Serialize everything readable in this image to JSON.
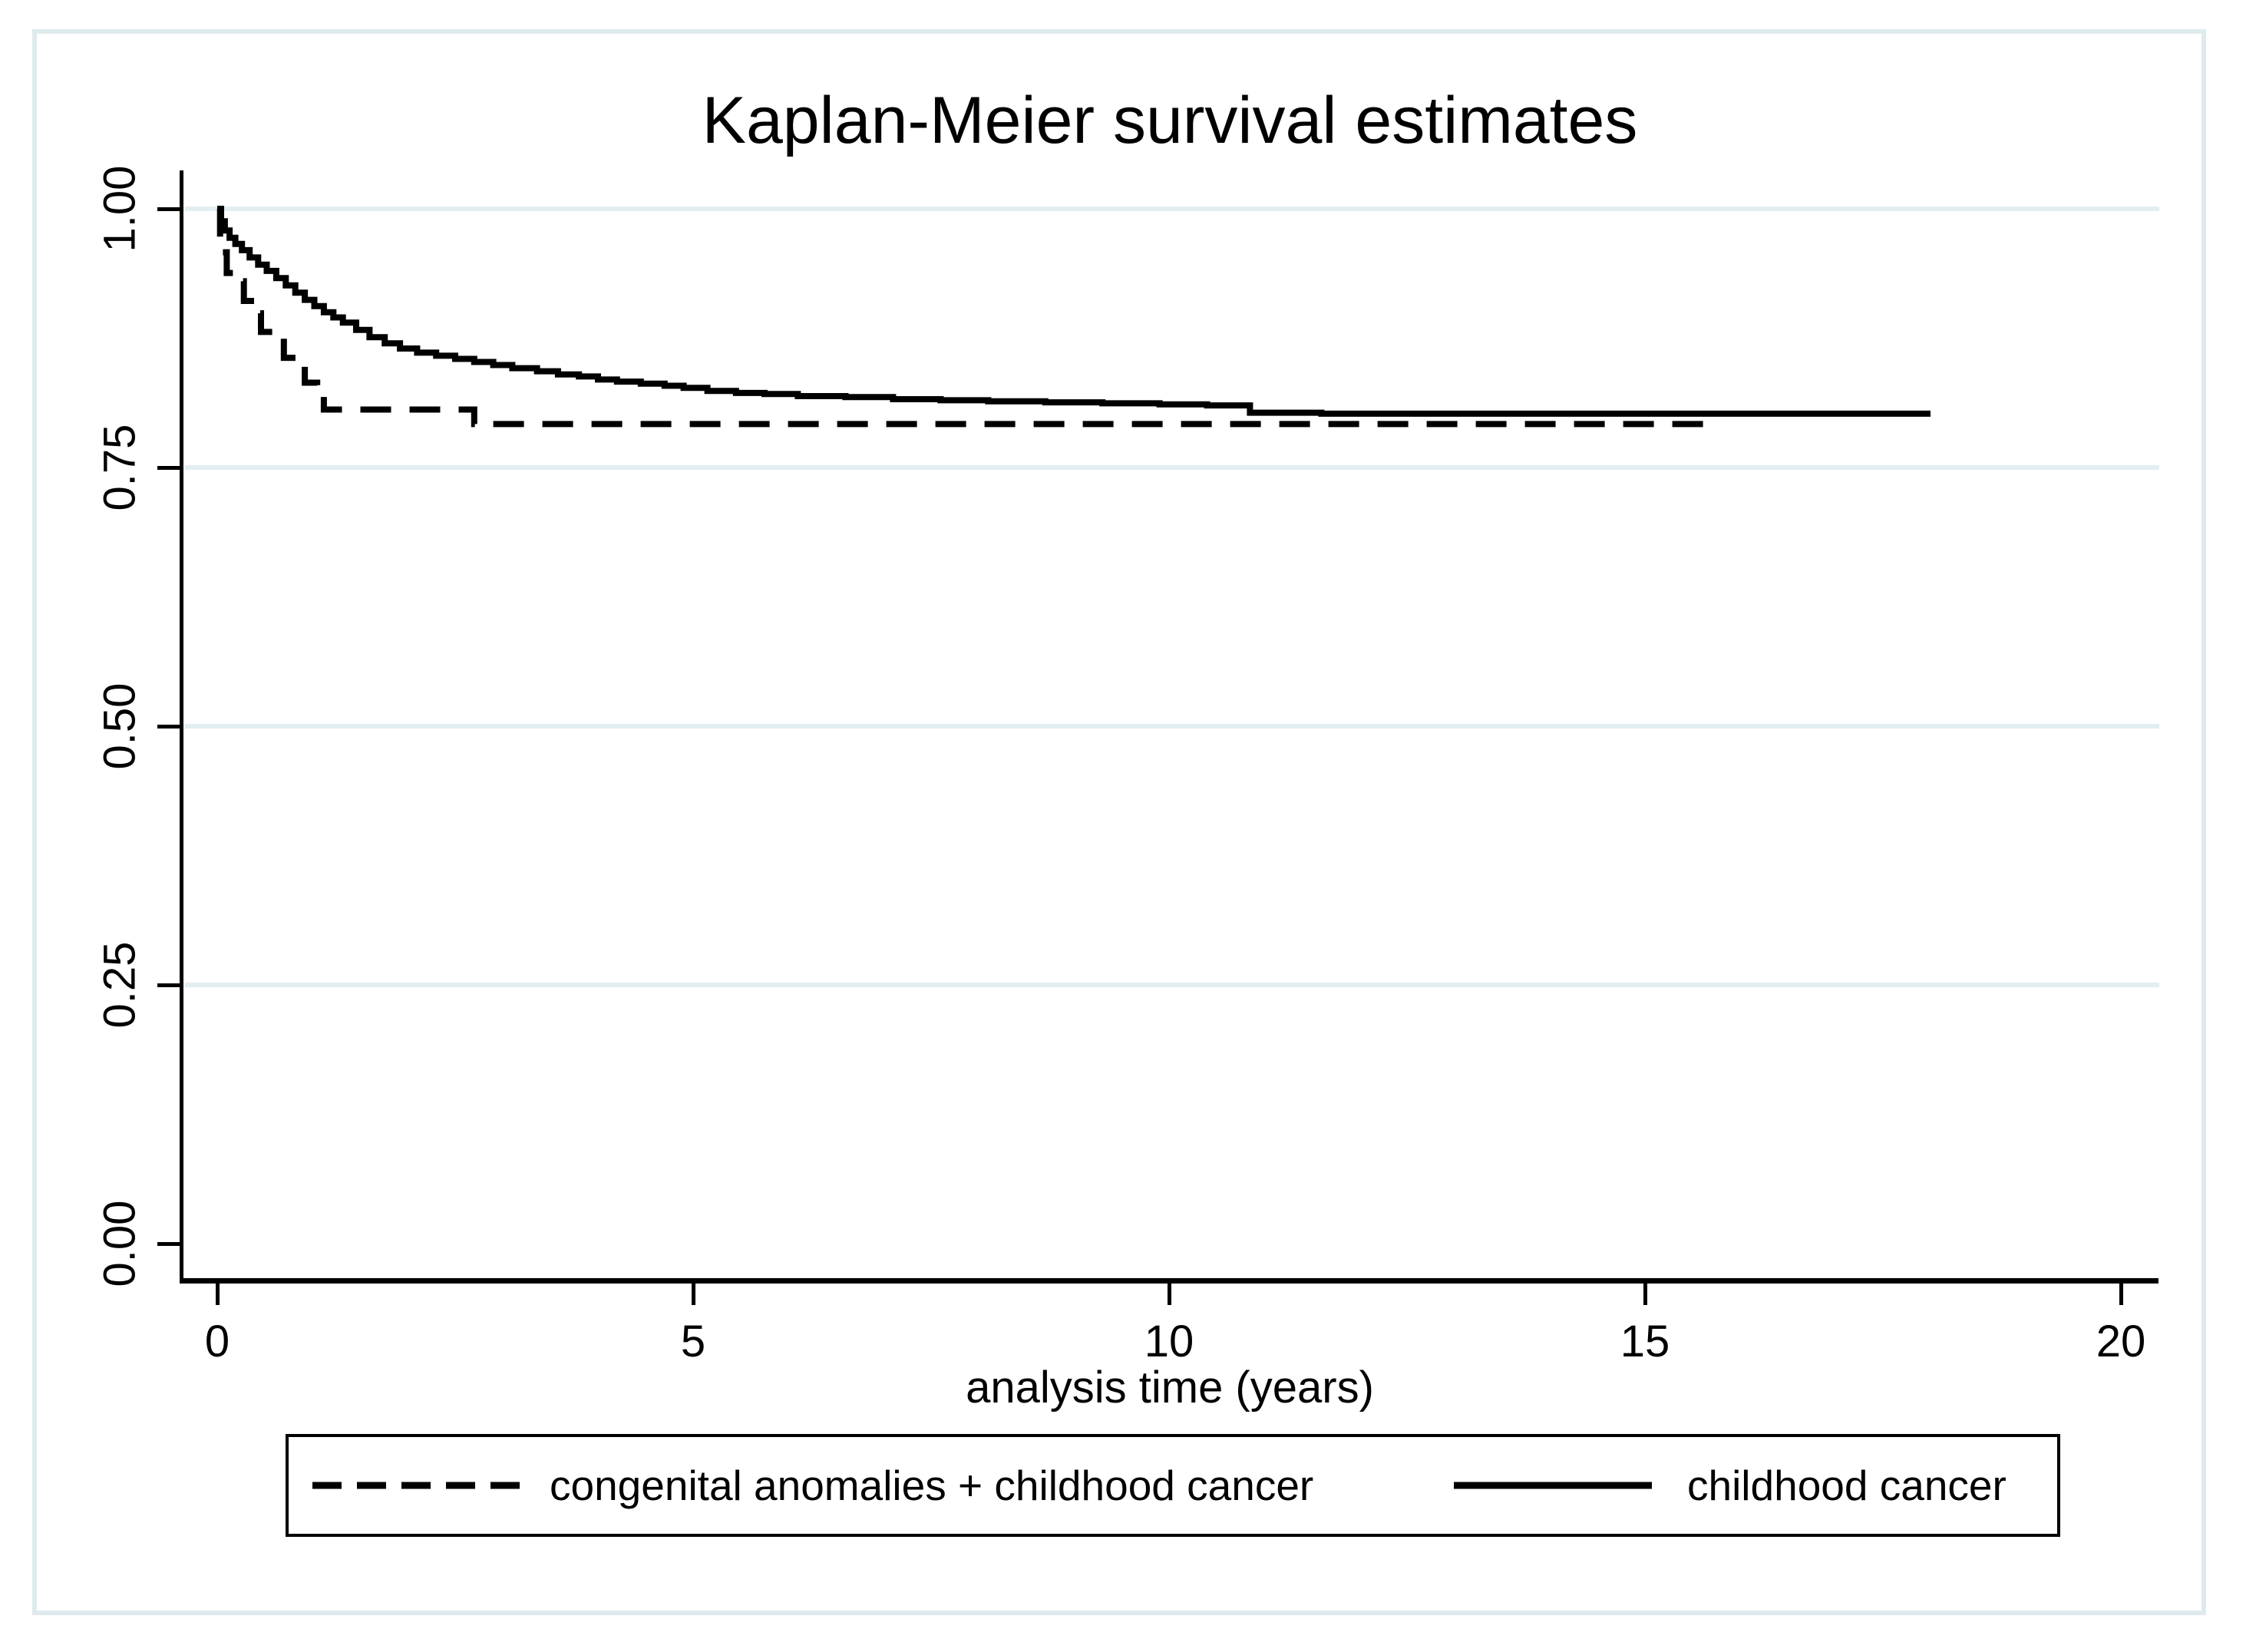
{
  "figure": {
    "title": "Kaplan-Meier survival estimates"
  },
  "colors": {
    "curve": "#000000",
    "gridline": "#e2eef2",
    "frame_border": "#dfeaed",
    "text": "#000000",
    "background": "#ffffff"
  },
  "legend": {
    "position": "bottom",
    "items": [
      {
        "label": "congenital anomalies + childhood cancer",
        "style": "dashed"
      },
      {
        "label": "childhood cancer",
        "style": "solid"
      }
    ]
  },
  "chart_data": {
    "type": "line",
    "subtype": "kaplan-meier-step",
    "title": "Kaplan-Meier survival estimates",
    "xlabel": "analysis time (years)",
    "ylabel": "",
    "xlim": [
      0,
      20
    ],
    "ylim": [
      0.0,
      1.0
    ],
    "grid": "horizontal",
    "legend_position": "bottom",
    "x_ticks": [
      {
        "value": 0,
        "label": "0"
      },
      {
        "value": 5,
        "label": "5"
      },
      {
        "value": 10,
        "label": "10"
      },
      {
        "value": 15,
        "label": "15"
      },
      {
        "value": 20,
        "label": "20"
      }
    ],
    "y_ticks": [
      {
        "value": 1.0,
        "label": "1.00",
        "grid": true
      },
      {
        "value": 0.75,
        "label": "0.75",
        "grid": true
      },
      {
        "value": 0.5,
        "label": "0.50",
        "grid": true
      },
      {
        "value": 0.25,
        "label": "0.25",
        "grid": true
      },
      {
        "value": 0.0,
        "label": "0.00",
        "grid": false
      }
    ],
    "series": [
      {
        "name": "congenital anomalies + childhood cancer",
        "style": "dashed",
        "step": true,
        "end_time_years": 15.8,
        "points": [
          [
            0.0,
            1.0
          ],
          [
            0.03,
            0.958
          ],
          [
            0.1,
            0.938
          ],
          [
            0.22,
            0.93
          ],
          [
            0.28,
            0.911
          ],
          [
            0.4,
            0.899
          ],
          [
            0.46,
            0.881
          ],
          [
            0.65,
            0.876
          ],
          [
            0.7,
            0.856
          ],
          [
            0.86,
            0.852
          ],
          [
            0.92,
            0.832
          ],
          [
            1.05,
            0.824
          ],
          [
            1.12,
            0.806
          ],
          [
            2.7,
            0.792
          ],
          [
            15.8,
            0.792
          ]
        ]
      },
      {
        "name": "childhood cancer",
        "style": "solid",
        "step": true,
        "end_time_years": 18.0,
        "points": [
          [
            0.0,
            1.0
          ],
          [
            0.04,
            0.988
          ],
          [
            0.08,
            0.979
          ],
          [
            0.13,
            0.972
          ],
          [
            0.19,
            0.966
          ],
          [
            0.26,
            0.96
          ],
          [
            0.34,
            0.953
          ],
          [
            0.43,
            0.946
          ],
          [
            0.52,
            0.94
          ],
          [
            0.62,
            0.933
          ],
          [
            0.72,
            0.926
          ],
          [
            0.82,
            0.919
          ],
          [
            0.92,
            0.912
          ],
          [
            1.02,
            0.906
          ],
          [
            1.12,
            0.9
          ],
          [
            1.22,
            0.895
          ],
          [
            1.32,
            0.89
          ],
          [
            1.46,
            0.883
          ],
          [
            1.6,
            0.876
          ],
          [
            1.76,
            0.87
          ],
          [
            1.92,
            0.865
          ],
          [
            2.1,
            0.861
          ],
          [
            2.3,
            0.858
          ],
          [
            2.5,
            0.855
          ],
          [
            2.7,
            0.852
          ],
          [
            2.9,
            0.849
          ],
          [
            3.1,
            0.846
          ],
          [
            3.36,
            0.843
          ],
          [
            3.58,
            0.84
          ],
          [
            3.8,
            0.838
          ],
          [
            4.0,
            0.835
          ],
          [
            4.2,
            0.833
          ],
          [
            4.45,
            0.831
          ],
          [
            4.7,
            0.829
          ],
          [
            4.9,
            0.827
          ],
          [
            5.15,
            0.824
          ],
          [
            5.45,
            0.822
          ],
          [
            5.75,
            0.821
          ],
          [
            6.1,
            0.819
          ],
          [
            6.6,
            0.818
          ],
          [
            7.1,
            0.816
          ],
          [
            7.6,
            0.815
          ],
          [
            8.1,
            0.814
          ],
          [
            8.7,
            0.813
          ],
          [
            9.3,
            0.812
          ],
          [
            9.9,
            0.811
          ],
          [
            10.4,
            0.81
          ],
          [
            10.85,
            0.803
          ],
          [
            11.6,
            0.802
          ],
          [
            18.0,
            0.802
          ]
        ]
      }
    ]
  }
}
